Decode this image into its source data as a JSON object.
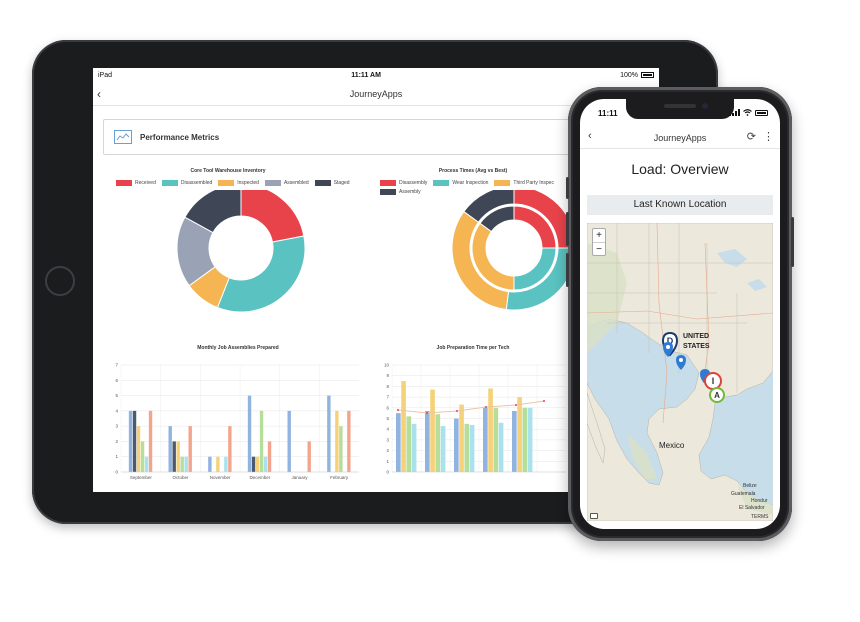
{
  "ipad": {
    "status": {
      "device": "iPad",
      "time": "11:11 AM",
      "battery": "100%"
    },
    "nav_title": "JourneyApps",
    "metrics_title": "Performance Metrics",
    "inventory_chart": {
      "title": "Core Tool Warehouse Inventory",
      "legend": [
        "Received",
        "Disassembled",
        "Inspected",
        "Assembled",
        "Staged"
      ]
    },
    "process_chart": {
      "title": "Process Times (Avg vs Best)",
      "legend": [
        "Disassembly",
        "Wear Inspection",
        "Third Party Inspec",
        "Assembly"
      ]
    },
    "monthly_chart": {
      "title": "Monthly Job Assemblies Prepared",
      "months": [
        "September",
        "October",
        "November",
        "December",
        "January",
        "February"
      ],
      "yticks": [
        "7",
        "6",
        "5",
        "4",
        "3",
        "2",
        "1",
        "0"
      ]
    },
    "prep_chart": {
      "title": "Job Preparation Time per Tech",
      "yticks": [
        "10",
        "9",
        "8",
        "7",
        "6",
        "5",
        "4",
        "3",
        "2",
        "1",
        "0"
      ]
    }
  },
  "phone": {
    "status": {
      "time": "11:11"
    },
    "nav_title": "JourneyApps",
    "page_title": "Load: Overview",
    "section_title": "Last Known Location",
    "map": {
      "zoom_in": "+",
      "zoom_out": "−",
      "country_label_1": "UNITED",
      "country_label_2": "STATES",
      "mexico": "Mexico",
      "belize": "Belize",
      "guatemala": "Guatemala",
      "honduras": "Hondur",
      "el_salvador": "El Salvador",
      "terms": "TERMS",
      "markers": [
        "D",
        "I",
        "A"
      ]
    }
  },
  "chart_data": [
    {
      "type": "pie",
      "title": "Core Tool Warehouse Inventory",
      "categories": [
        "Received",
        "Disassembled",
        "Inspected",
        "Assembled",
        "Staged"
      ],
      "values": [
        22,
        34,
        9,
        18,
        17
      ],
      "colors": [
        "#e8434b",
        "#5ac2c1",
        "#f5b553",
        "#9aa3b5",
        "#3f4656"
      ]
    },
    {
      "type": "pie",
      "title": "Process Times (Avg vs Best)",
      "categories": [
        "Disassembly",
        "Wear Inspection",
        "Third Party Inspec",
        "Assembly"
      ],
      "series": [
        {
          "values": [
            25,
            27,
            33,
            15
          ]
        },
        {
          "values": [
            25,
            25,
            35,
            15
          ]
        }
      ],
      "colors": [
        "#e8434b",
        "#5ac2c1",
        "#f5b553",
        "#3f4656"
      ]
    },
    {
      "type": "bar",
      "title": "Monthly Job Assemblies Prepared",
      "categories": [
        "September",
        "October",
        "November",
        "December",
        "January",
        "February"
      ],
      "ylim": [
        0,
        7
      ],
      "series": [
        {
          "color": "#90b3e0",
          "values": [
            4,
            3,
            1,
            5,
            4,
            5
          ]
        },
        {
          "color": "#4b5a70",
          "values": [
            4,
            2,
            0,
            1,
            0,
            0
          ]
        },
        {
          "color": "#f5d27a",
          "values": [
            3,
            2,
            1,
            1,
            0,
            4
          ]
        },
        {
          "color": "#b6dd9a",
          "values": [
            2,
            1,
            0,
            4,
            0,
            3
          ]
        },
        {
          "color": "#a9e2ec",
          "values": [
            1,
            1,
            1,
            1,
            0,
            0
          ]
        },
        {
          "color": "#f2a58c",
          "values": [
            4,
            3,
            3,
            2,
            2,
            4
          ]
        }
      ]
    },
    {
      "type": "bar",
      "title": "Job Preparation Time per Tech",
      "ylim": [
        0,
        10
      ],
      "categories": [
        "",
        "",
        "",
        "",
        "",
        ""
      ],
      "series": [
        {
          "color": "#90b3e0",
          "values": [
            5.5,
            5.7,
            5,
            6,
            5.7,
            0
          ]
        },
        {
          "color": "#f5d27a",
          "values": [
            8.5,
            7.7,
            6.3,
            7.8,
            7,
            0
          ]
        },
        {
          "color": "#b6dd9a",
          "values": [
            5.2,
            5.4,
            4.5,
            6,
            6,
            0
          ]
        },
        {
          "color": "#a9e2ec",
          "values": [
            4.5,
            4.3,
            4.4,
            4.6,
            6,
            0
          ]
        }
      ]
    }
  ]
}
